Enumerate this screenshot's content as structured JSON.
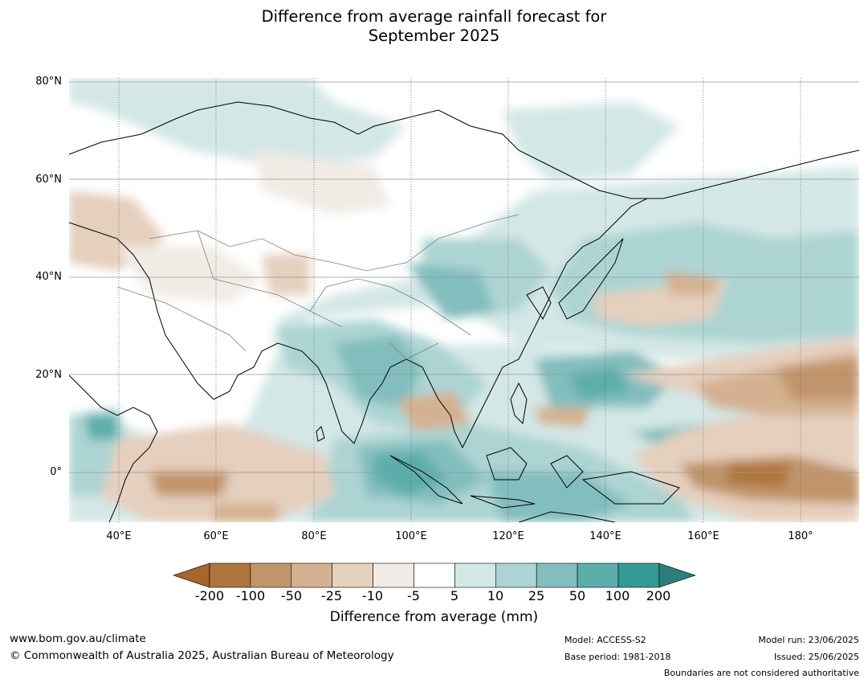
{
  "title_line1": "Difference from average rainfall forecast for",
  "title_line2": "September 2025",
  "map": {
    "lat_labels": [
      "80°N",
      "60°N",
      "40°N",
      "20°N",
      "0°"
    ],
    "lon_labels": [
      "40°E",
      "60°E",
      "80°E",
      "100°E",
      "120°E",
      "140°E",
      "160°E",
      "180°"
    ],
    "colors": {
      "land_outline": "#000000",
      "border_outline": "#808080",
      "gridline": "#999999"
    }
  },
  "legend": {
    "title": "Difference from average (mm)",
    "ticks": [
      "-200",
      "-100",
      "-50",
      "-25",
      "-10",
      "-5",
      "5",
      "10",
      "25",
      "50",
      "100",
      "200"
    ],
    "colors": [
      "#a6652c",
      "#ae763d",
      "#c1946a",
      "#d4b190",
      "#e5cfbd",
      "#f1ebe5",
      "#ffffff",
      "#d3e7e6",
      "#acd4d3",
      "#82bebd",
      "#5caeab",
      "#339a96",
      "#2b7e7a"
    ]
  },
  "footer": {
    "website": "www.bom.gov.au/climate",
    "copyright": "© Commonwealth of Australia 2025, Australian Bureau of Meteorology",
    "model": "Model: ACCESS-S2",
    "base_period": "Base period: 1981-2018",
    "model_run": "Model run: 23/06/2025",
    "issued": "Issued: 25/06/2025",
    "disclaimer": "Boundaries are not considered authoritative"
  }
}
